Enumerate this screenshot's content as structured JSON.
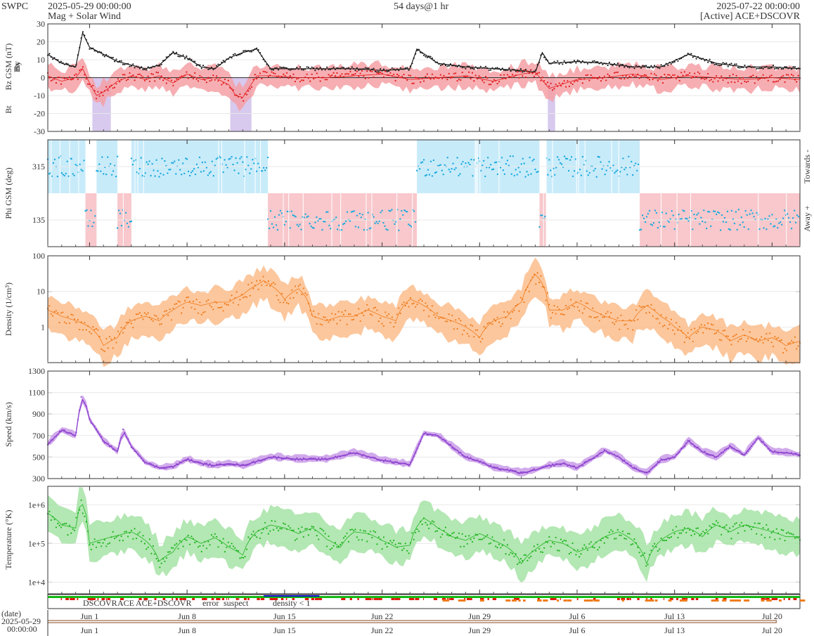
{
  "header": {
    "brand": "SWPC",
    "start_time": "2025-05-29 00:00:00",
    "subtitle": "Mag + Solar Wind",
    "span": "54 days@1 hr",
    "end_time": "2025-07-22 00:00:00",
    "source": "[Active] ACE+DSCOVR"
  },
  "colors": {
    "bt": "#1a1a1a",
    "bz": "#e31a1c",
    "bz_band": "#f4a0a4",
    "by": "#17a9de",
    "bx": "#8e44ad",
    "south_shade": "#d8c9ee",
    "phi": "#17a9de",
    "toward_shade": "#c8ebfa",
    "away_shade": "#f8c8cc",
    "density": "#f07c1c",
    "density_band": "#fbbd8c",
    "speed": "#8e44d0",
    "speed_band": "#c99be8",
    "temp": "#1fb51f",
    "temp_band": "#a6e3a6"
  },
  "chart_data": [
    {
      "type": "line",
      "panel": "magnetic-field",
      "ylabel_parts": [
        "Bt",
        "Bz GSM (nT)",
        "Bx",
        "By"
      ],
      "ylim": [
        -30,
        30
      ],
      "yticks": [
        -30,
        -20,
        -10,
        0,
        10,
        20,
        30
      ],
      "x_unit": "days since 2025-05-29",
      "series": [
        {
          "name": "Bt",
          "x": [
            0,
            1,
            2,
            2.5,
            3,
            4,
            5,
            6,
            7,
            8,
            9,
            10,
            11,
            12,
            13,
            14,
            15,
            16,
            18,
            20,
            22,
            24,
            26,
            26.5,
            28,
            30,
            32,
            34,
            35,
            35.5,
            36,
            38,
            40,
            42,
            44,
            46,
            48,
            50,
            52,
            54
          ],
          "values": [
            13,
            8,
            6,
            25,
            17,
            13,
            9,
            7,
            5,
            7,
            14,
            11,
            6,
            5,
            11,
            14,
            16,
            5,
            5,
            5,
            5,
            4,
            5,
            16,
            8,
            6,
            5,
            4,
            3,
            14,
            8,
            9,
            8,
            6,
            6,
            13,
            8,
            6,
            6,
            5
          ]
        },
        {
          "name": "Bz",
          "x": [
            0,
            1,
            2,
            2.5,
            3,
            3.5,
            4,
            5,
            6,
            7,
            8,
            9,
            10,
            11,
            12,
            13,
            13.5,
            14,
            15,
            16,
            18,
            20,
            22,
            24,
            26,
            28,
            30,
            32,
            34,
            35,
            36,
            38,
            40,
            42,
            44,
            46,
            48,
            50,
            52,
            54
          ],
          "values": [
            1,
            -2,
            0,
            5,
            -3,
            -10,
            -8,
            -2,
            1,
            -1,
            1,
            -3,
            2,
            -1,
            0,
            -4,
            -10,
            -11,
            1,
            1,
            0,
            0,
            1,
            2,
            -1,
            0,
            1,
            -2,
            2,
            3,
            -6,
            -1,
            0,
            2,
            -1,
            1,
            0,
            -1,
            0,
            -1
          ]
        }
      ]
    },
    {
      "type": "scatter",
      "panel": "phi-angle",
      "ylabel": "Phi GSM (deg)",
      "ylim": [
        45,
        405
      ],
      "yticks": [
        135,
        315
      ],
      "right_labels": [
        "Towards -",
        "Away +"
      ],
      "x_unit": "days since 2025-05-29",
      "sectors": [
        {
          "from": 0,
          "to": 2.7,
          "polarity": "toward"
        },
        {
          "from": 2.7,
          "to": 3.5,
          "polarity": "away"
        },
        {
          "from": 3.5,
          "to": 5.0,
          "polarity": "toward"
        },
        {
          "from": 5.0,
          "to": 6.0,
          "polarity": "away"
        },
        {
          "from": 6.0,
          "to": 15.8,
          "polarity": "toward"
        },
        {
          "from": 15.8,
          "to": 26.5,
          "polarity": "away"
        },
        {
          "from": 26.5,
          "to": 35.3,
          "polarity": "toward"
        },
        {
          "from": 35.3,
          "to": 35.8,
          "polarity": "away"
        },
        {
          "from": 35.8,
          "to": 42.5,
          "polarity": "toward"
        },
        {
          "from": 42.5,
          "to": 54,
          "polarity": "away"
        }
      ]
    },
    {
      "type": "line",
      "panel": "density",
      "ylabel": "Density (1/cm³)",
      "yscale": "log",
      "ylim": [
        0.1,
        100
      ],
      "yticks": [
        1,
        10,
        100
      ],
      "x_unit": "days since 2025-05-29",
      "series": [
        {
          "name": "Density",
          "x": [
            0,
            1,
            2,
            3,
            4,
            5,
            6,
            7,
            8,
            9,
            10,
            11,
            12,
            13,
            14,
            15,
            15.5,
            16,
            17,
            18,
            19,
            20,
            21,
            22,
            23,
            24,
            25,
            26,
            27,
            28,
            29,
            30,
            31,
            32,
            33,
            34,
            34.5,
            35,
            36,
            37,
            38,
            39,
            40,
            41,
            42,
            43,
            44,
            45,
            46,
            47,
            48,
            49,
            50,
            51,
            52,
            53,
            54
          ],
          "values": [
            3,
            2,
            1.5,
            1,
            0.3,
            0.5,
            1.5,
            2,
            1.5,
            3,
            5,
            4,
            5,
            5,
            8,
            15,
            20,
            15,
            6,
            12,
            2,
            1.5,
            2,
            2,
            3,
            2,
            1.5,
            6,
            4,
            2,
            1.5,
            1,
            0.5,
            1.5,
            2,
            5,
            15,
            30,
            3,
            3,
            5,
            3,
            2,
            1.5,
            1.5,
            4,
            2,
            1,
            0.5,
            1,
            0.8,
            0.4,
            0.6,
            0.4,
            0.5,
            0.3,
            0.4
          ]
        }
      ]
    },
    {
      "type": "line",
      "panel": "speed",
      "ylabel": "Speed (km/s)",
      "ylim": [
        300,
        1300
      ],
      "yticks": [
        300,
        500,
        700,
        900,
        1100,
        1300
      ],
      "x_unit": "days since 2025-05-29",
      "series": [
        {
          "name": "Speed",
          "x": [
            0,
            1,
            2,
            2.4,
            2.7,
            3,
            4,
            5,
            5.4,
            6,
            7,
            8,
            9,
            10,
            11,
            12,
            13,
            14,
            15,
            16,
            18,
            20,
            22,
            24,
            26,
            27,
            28,
            29,
            30,
            31,
            32,
            33,
            34,
            35,
            36,
            37,
            38,
            39,
            40,
            41,
            42,
            43,
            44,
            45,
            46,
            47,
            48,
            49,
            50,
            51,
            52,
            53,
            54
          ],
          "values": [
            620,
            750,
            700,
            1050,
            1000,
            850,
            650,
            550,
            750,
            600,
            450,
            400,
            410,
            480,
            440,
            420,
            440,
            420,
            460,
            500,
            480,
            480,
            540,
            470,
            430,
            720,
            700,
            600,
            500,
            460,
            400,
            380,
            350,
            380,
            420,
            440,
            400,
            480,
            560,
            500,
            400,
            350,
            470,
            500,
            650,
            550,
            500,
            600,
            520,
            680,
            550,
            540,
            520
          ]
        }
      ]
    },
    {
      "type": "line",
      "panel": "temperature",
      "ylabel": "Temperature (°K)",
      "yscale": "log",
      "ylim": [
        5000,
        3000000
      ],
      "yticks": [
        10000,
        100000,
        1000000
      ],
      "ytick_labels": [
        "1e+4",
        "1e+5",
        "1e+6"
      ],
      "x_unit": "days since 2025-05-29",
      "series": [
        {
          "name": "Temperature",
          "x": [
            0,
            1,
            2,
            2.4,
            3,
            4,
            5,
            6,
            7,
            8,
            9,
            10,
            11,
            12,
            13,
            14,
            15,
            16,
            17,
            18,
            19,
            20,
            21,
            22,
            23,
            24,
            25,
            26,
            27,
            28,
            29,
            30,
            31,
            32,
            33,
            34,
            35,
            36,
            37,
            38,
            39,
            40,
            41,
            42,
            43,
            44,
            45,
            46,
            47,
            48,
            49,
            50,
            51,
            52,
            53,
            54
          ],
          "values": [
            600000,
            300000,
            250000,
            1200000,
            100000,
            130000,
            160000,
            200000,
            120000,
            35000,
            60000,
            150000,
            100000,
            140000,
            80000,
            50000,
            200000,
            300000,
            250000,
            180000,
            250000,
            130000,
            80000,
            200000,
            180000,
            120000,
            80000,
            90000,
            450000,
            250000,
            150000,
            120000,
            180000,
            120000,
            80000,
            30000,
            70000,
            120000,
            100000,
            60000,
            80000,
            150000,
            200000,
            120000,
            30000,
            120000,
            200000,
            250000,
            150000,
            300000,
            200000,
            300000,
            250000,
            200000,
            150000,
            150000
          ]
        }
      ]
    },
    {
      "type": "table",
      "panel": "source-strip",
      "legend": [
        "DSCOVR",
        "ACE",
        "ACE+DSCOVR",
        "error",
        "suspect",
        "density < 1"
      ],
      "legend_colors": [
        "#1010c8",
        "#14b814",
        "#d818c8",
        "#e01a10",
        "#e8b010",
        "#f07c1c"
      ]
    },
    {
      "type": "line",
      "panel": "date-axis",
      "x_tick_labels": [
        "Jun 1",
        "Jun 8",
        "Jun 15",
        "Jun 22",
        "Jun 29",
        "Jul 6",
        "Jul 13",
        "Jul 20"
      ],
      "x_tick_values": [
        3,
        10,
        17,
        24,
        31,
        38,
        45,
        52
      ],
      "xlim": [
        0,
        54
      ],
      "date_label": "(date)",
      "date_start": "2025-05-29",
      "time_start": "00:00:00"
    }
  ]
}
